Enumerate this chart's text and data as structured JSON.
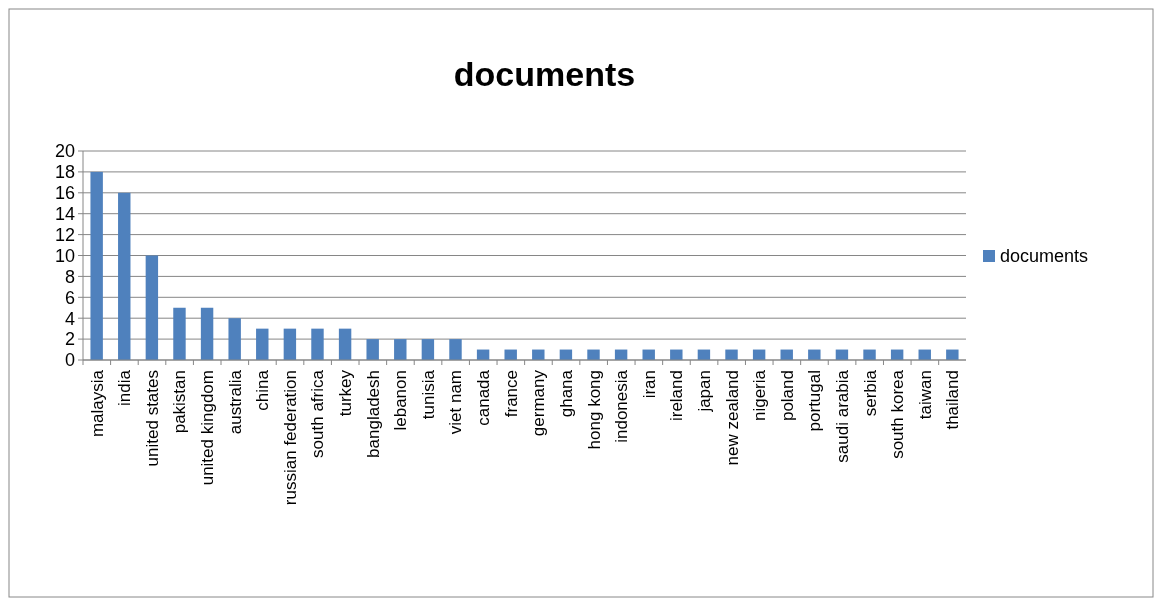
{
  "chart_data": {
    "type": "bar",
    "title": "documents",
    "categories": [
      "malaysia",
      "india",
      "united states",
      "pakistan",
      "united kingdom",
      "australia",
      "china",
      "russian federation",
      "south africa",
      "turkey",
      "bangladesh",
      "lebanon",
      "tunisia",
      "viet nam",
      "canada",
      "france",
      "germany",
      "ghana",
      "hong kong",
      "indonesia",
      "iran",
      "ireland",
      "japan",
      "new zealand",
      "nigeria",
      "poland",
      "portugal",
      "saudi arabia",
      "serbia",
      "south korea",
      "taiwan",
      "thailand"
    ],
    "series": [
      {
        "name": "documents",
        "color": "#4f81bd",
        "values": [
          18,
          16,
          10,
          5,
          5,
          4,
          3,
          3,
          3,
          3,
          2,
          2,
          2,
          2,
          1,
          1,
          1,
          1,
          1,
          1,
          1,
          1,
          1,
          1,
          1,
          1,
          1,
          1,
          1,
          1,
          1,
          1
        ]
      }
    ],
    "ylim": [
      0,
      20
    ],
    "yticks": [
      0,
      2,
      4,
      6,
      8,
      10,
      12,
      14,
      16,
      18,
      20
    ],
    "grid": "y",
    "legend": "right"
  }
}
